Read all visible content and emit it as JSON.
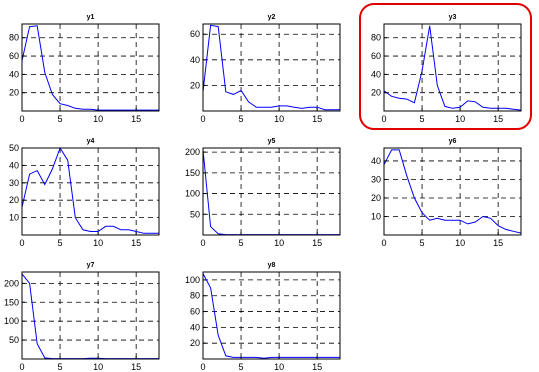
{
  "colors": {
    "line": "#0000ff",
    "highlight": "#e00000",
    "axis": "#000000",
    "grid": "#000000"
  },
  "chart_data": [
    {
      "type": "line",
      "title": "y1",
      "xlabel": "",
      "ylabel": "",
      "xlim": [
        0,
        18
      ],
      "ylim": [
        0,
        95
      ],
      "grid": true,
      "highlighted": false,
      "xticks": [
        0,
        5,
        10,
        15
      ],
      "yticks": [
        20,
        40,
        60,
        80
      ],
      "x": [
        0,
        1,
        2,
        3,
        4,
        5,
        6,
        7,
        8,
        9,
        10,
        11,
        12,
        13,
        14,
        15,
        16,
        17,
        18
      ],
      "y": [
        55,
        92,
        93,
        42,
        18,
        8,
        6,
        3,
        2,
        2,
        1,
        1,
        1,
        1,
        1,
        1,
        1,
        1,
        1
      ]
    },
    {
      "type": "line",
      "title": "y2",
      "xlabel": "",
      "ylabel": "",
      "xlim": [
        0,
        18
      ],
      "ylim": [
        0,
        68
      ],
      "grid": true,
      "highlighted": false,
      "xticks": [
        0,
        5,
        10,
        15
      ],
      "yticks": [
        20,
        40,
        60
      ],
      "x": [
        0,
        1,
        2,
        3,
        4,
        5,
        6,
        7,
        8,
        9,
        10,
        11,
        12,
        13,
        14,
        15,
        16,
        17,
        18
      ],
      "y": [
        15,
        67,
        66,
        15,
        13,
        16,
        7,
        3,
        3,
        3,
        4,
        4,
        3,
        2,
        3,
        3,
        1,
        1,
        1
      ]
    },
    {
      "type": "line",
      "title": "y3",
      "xlabel": "",
      "ylabel": "",
      "xlim": [
        0,
        18
      ],
      "ylim": [
        0,
        95
      ],
      "grid": true,
      "highlighted": true,
      "xticks": [
        0,
        5,
        10,
        15
      ],
      "yticks": [
        20,
        40,
        60,
        80
      ],
      "x": [
        0,
        1,
        2,
        3,
        4,
        5,
        6,
        7,
        8,
        9,
        10,
        11,
        12,
        13,
        14,
        15,
        16,
        17,
        18
      ],
      "y": [
        22,
        16,
        14,
        13,
        9,
        44,
        93,
        28,
        5,
        3,
        4,
        11,
        10,
        4,
        3,
        3,
        3,
        2,
        1
      ]
    },
    {
      "type": "line",
      "title": "y4",
      "xlabel": "",
      "ylabel": "",
      "xlim": [
        0,
        18
      ],
      "ylim": [
        0,
        50
      ],
      "grid": true,
      "highlighted": false,
      "xticks": [
        0,
        5,
        10,
        15
      ],
      "yticks": [
        10,
        20,
        30,
        40,
        50
      ],
      "x": [
        0,
        1,
        2,
        3,
        4,
        5,
        6,
        7,
        8,
        9,
        10,
        11,
        12,
        13,
        14,
        15,
        16,
        17,
        18
      ],
      "y": [
        16,
        35,
        37,
        29,
        38,
        50,
        43,
        10,
        3,
        2,
        2,
        5,
        5,
        3,
        3,
        2,
        1,
        1,
        1
      ]
    },
    {
      "type": "line",
      "title": "y5",
      "xlabel": "",
      "ylabel": "",
      "xlim": [
        0,
        18
      ],
      "ylim": [
        0,
        210
      ],
      "grid": true,
      "highlighted": false,
      "xticks": [
        0,
        5,
        10,
        15
      ],
      "yticks": [
        50,
        100,
        150,
        200
      ],
      "x": [
        0,
        1,
        2,
        3,
        4,
        5,
        6,
        7,
        8,
        9,
        10,
        11,
        12,
        13,
        14,
        15,
        16,
        17,
        18
      ],
      "y": [
        205,
        20,
        3,
        1,
        1,
        1,
        1,
        1,
        1,
        1,
        1,
        1,
        1,
        1,
        1,
        1,
        1,
        1,
        1
      ]
    },
    {
      "type": "line",
      "title": "y6",
      "xlabel": "",
      "ylabel": "",
      "xlim": [
        0,
        18
      ],
      "ylim": [
        0,
        47
      ],
      "grid": true,
      "highlighted": false,
      "xticks": [
        0,
        5,
        10,
        15
      ],
      "yticks": [
        10,
        20,
        30,
        40
      ],
      "x": [
        0,
        1,
        2,
        3,
        4,
        5,
        6,
        7,
        8,
        9,
        10,
        11,
        12,
        13,
        14,
        15,
        16,
        17,
        18
      ],
      "y": [
        38,
        46,
        46,
        32,
        20,
        12,
        8,
        9,
        8,
        8,
        8,
        6,
        7,
        10,
        9,
        5,
        3,
        2,
        1
      ]
    },
    {
      "type": "line",
      "title": "y7",
      "xlabel": "",
      "ylabel": "",
      "xlim": [
        0,
        18
      ],
      "ylim": [
        0,
        230
      ],
      "grid": true,
      "highlighted": false,
      "xticks": [
        0,
        5,
        10,
        15
      ],
      "yticks": [
        50,
        100,
        150,
        200
      ],
      "x": [
        0,
        1,
        2,
        3,
        4,
        5,
        6,
        7,
        8,
        9,
        10,
        11,
        12,
        13,
        14,
        15,
        16,
        17,
        18
      ],
      "y": [
        225,
        200,
        40,
        3,
        1,
        1,
        1,
        1,
        1,
        2,
        2,
        1,
        1,
        1,
        1,
        1,
        1,
        1,
        1
      ]
    },
    {
      "type": "line",
      "title": "y8",
      "xlabel": "",
      "ylabel": "",
      "xlim": [
        0,
        18
      ],
      "ylim": [
        0,
        110
      ],
      "grid": true,
      "highlighted": false,
      "xticks": [
        0,
        5,
        10,
        15
      ],
      "yticks": [
        20,
        40,
        60,
        80,
        100
      ],
      "x": [
        0,
        1,
        2,
        3,
        4,
        5,
        6,
        7,
        8,
        9,
        10,
        11,
        12,
        13,
        14,
        15,
        16,
        17,
        18
      ],
      "y": [
        108,
        90,
        30,
        4,
        2,
        2,
        2,
        2,
        1,
        2,
        2,
        2,
        2,
        2,
        2,
        2,
        2,
        2,
        2
      ]
    }
  ]
}
